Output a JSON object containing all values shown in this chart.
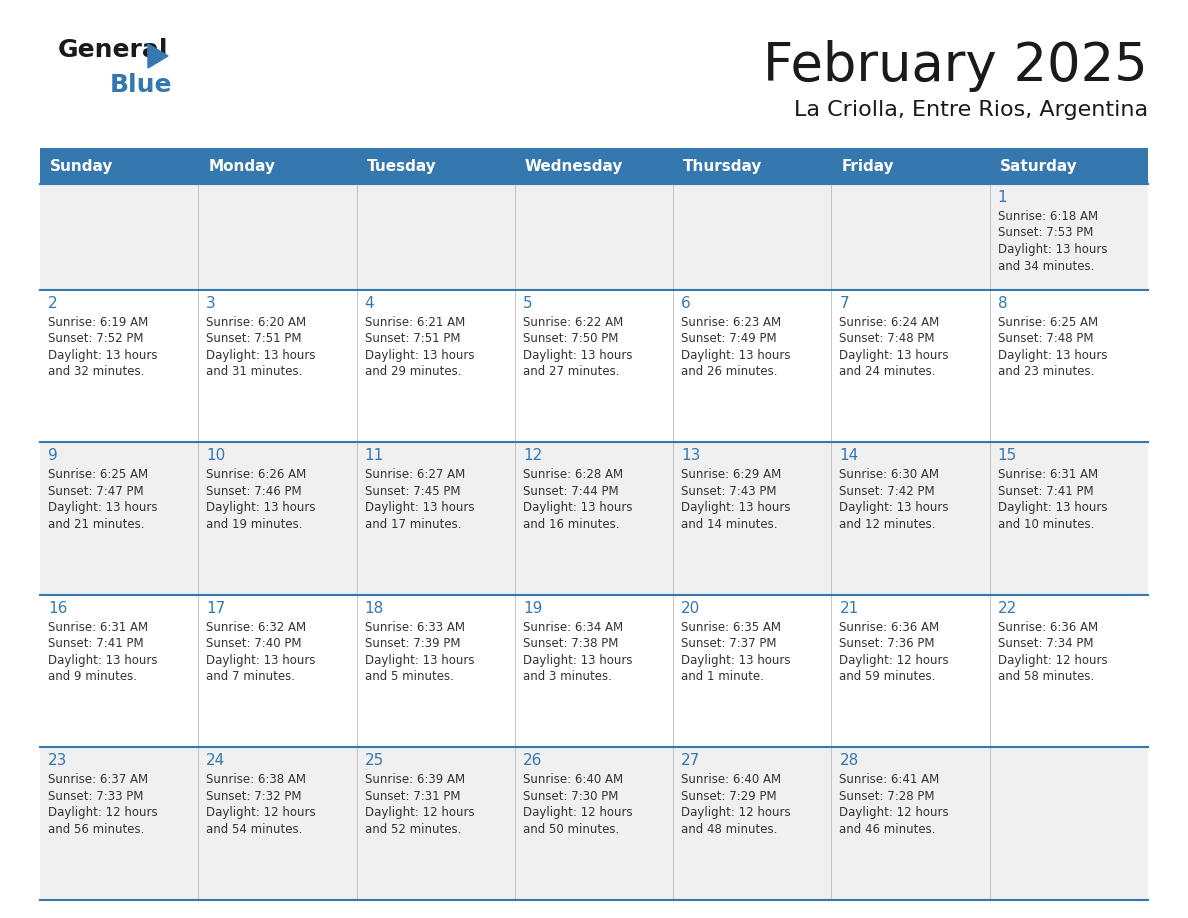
{
  "title": "February 2025",
  "subtitle": "La Criolla, Entre Rios, Argentina",
  "header_color": "#3578b0",
  "header_text_color": "#ffffff",
  "days_of_week": [
    "Sunday",
    "Monday",
    "Tuesday",
    "Wednesday",
    "Thursday",
    "Friday",
    "Saturday"
  ],
  "bg_color": "#ffffff",
  "cell_bg_light": "#f0f0f0",
  "cell_bg_white": "#ffffff",
  "day_number_color": "#3578b0",
  "text_color": "#333333",
  "line_color": "#3578b0",
  "calendar_data": [
    [
      null,
      null,
      null,
      null,
      null,
      null,
      {
        "day": 1,
        "sunrise": "6:18 AM",
        "sunset": "7:53 PM",
        "daylight_h": "13 hours",
        "daylight_m": "and 34 minutes."
      }
    ],
    [
      {
        "day": 2,
        "sunrise": "6:19 AM",
        "sunset": "7:52 PM",
        "daylight_h": "13 hours",
        "daylight_m": "and 32 minutes."
      },
      {
        "day": 3,
        "sunrise": "6:20 AM",
        "sunset": "7:51 PM",
        "daylight_h": "13 hours",
        "daylight_m": "and 31 minutes."
      },
      {
        "day": 4,
        "sunrise": "6:21 AM",
        "sunset": "7:51 PM",
        "daylight_h": "13 hours",
        "daylight_m": "and 29 minutes."
      },
      {
        "day": 5,
        "sunrise": "6:22 AM",
        "sunset": "7:50 PM",
        "daylight_h": "13 hours",
        "daylight_m": "and 27 minutes."
      },
      {
        "day": 6,
        "sunrise": "6:23 AM",
        "sunset": "7:49 PM",
        "daylight_h": "13 hours",
        "daylight_m": "and 26 minutes."
      },
      {
        "day": 7,
        "sunrise": "6:24 AM",
        "sunset": "7:48 PM",
        "daylight_h": "13 hours",
        "daylight_m": "and 24 minutes."
      },
      {
        "day": 8,
        "sunrise": "6:25 AM",
        "sunset": "7:48 PM",
        "daylight_h": "13 hours",
        "daylight_m": "and 23 minutes."
      }
    ],
    [
      {
        "day": 9,
        "sunrise": "6:25 AM",
        "sunset": "7:47 PM",
        "daylight_h": "13 hours",
        "daylight_m": "and 21 minutes."
      },
      {
        "day": 10,
        "sunrise": "6:26 AM",
        "sunset": "7:46 PM",
        "daylight_h": "13 hours",
        "daylight_m": "and 19 minutes."
      },
      {
        "day": 11,
        "sunrise": "6:27 AM",
        "sunset": "7:45 PM",
        "daylight_h": "13 hours",
        "daylight_m": "and 17 minutes."
      },
      {
        "day": 12,
        "sunrise": "6:28 AM",
        "sunset": "7:44 PM",
        "daylight_h": "13 hours",
        "daylight_m": "and 16 minutes."
      },
      {
        "day": 13,
        "sunrise": "6:29 AM",
        "sunset": "7:43 PM",
        "daylight_h": "13 hours",
        "daylight_m": "and 14 minutes."
      },
      {
        "day": 14,
        "sunrise": "6:30 AM",
        "sunset": "7:42 PM",
        "daylight_h": "13 hours",
        "daylight_m": "and 12 minutes."
      },
      {
        "day": 15,
        "sunrise": "6:31 AM",
        "sunset": "7:41 PM",
        "daylight_h": "13 hours",
        "daylight_m": "and 10 minutes."
      }
    ],
    [
      {
        "day": 16,
        "sunrise": "6:31 AM",
        "sunset": "7:41 PM",
        "daylight_h": "13 hours",
        "daylight_m": "and 9 minutes."
      },
      {
        "day": 17,
        "sunrise": "6:32 AM",
        "sunset": "7:40 PM",
        "daylight_h": "13 hours",
        "daylight_m": "and 7 minutes."
      },
      {
        "day": 18,
        "sunrise": "6:33 AM",
        "sunset": "7:39 PM",
        "daylight_h": "13 hours",
        "daylight_m": "and 5 minutes."
      },
      {
        "day": 19,
        "sunrise": "6:34 AM",
        "sunset": "7:38 PM",
        "daylight_h": "13 hours",
        "daylight_m": "and 3 minutes."
      },
      {
        "day": 20,
        "sunrise": "6:35 AM",
        "sunset": "7:37 PM",
        "daylight_h": "13 hours",
        "daylight_m": "and 1 minute."
      },
      {
        "day": 21,
        "sunrise": "6:36 AM",
        "sunset": "7:36 PM",
        "daylight_h": "12 hours",
        "daylight_m": "and 59 minutes."
      },
      {
        "day": 22,
        "sunrise": "6:36 AM",
        "sunset": "7:34 PM",
        "daylight_h": "12 hours",
        "daylight_m": "and 58 minutes."
      }
    ],
    [
      {
        "day": 23,
        "sunrise": "6:37 AM",
        "sunset": "7:33 PM",
        "daylight_h": "12 hours",
        "daylight_m": "and 56 minutes."
      },
      {
        "day": 24,
        "sunrise": "6:38 AM",
        "sunset": "7:32 PM",
        "daylight_h": "12 hours",
        "daylight_m": "and 54 minutes."
      },
      {
        "day": 25,
        "sunrise": "6:39 AM",
        "sunset": "7:31 PM",
        "daylight_h": "12 hours",
        "daylight_m": "and 52 minutes."
      },
      {
        "day": 26,
        "sunrise": "6:40 AM",
        "sunset": "7:30 PM",
        "daylight_h": "12 hours",
        "daylight_m": "and 50 minutes."
      },
      {
        "day": 27,
        "sunrise": "6:40 AM",
        "sunset": "7:29 PM",
        "daylight_h": "12 hours",
        "daylight_m": "and 48 minutes."
      },
      {
        "day": 28,
        "sunrise": "6:41 AM",
        "sunset": "7:28 PM",
        "daylight_h": "12 hours",
        "daylight_m": "and 46 minutes."
      },
      null
    ]
  ]
}
